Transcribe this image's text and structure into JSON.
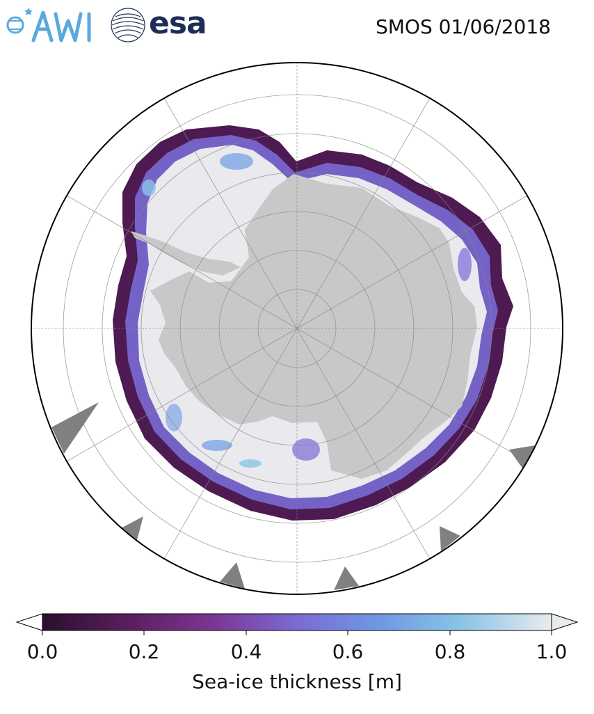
{
  "header": {
    "title": "SMOS 01/06/2018",
    "logos": [
      {
        "name": "AWI",
        "text": "AWI",
        "color": "#5aa9dd"
      },
      {
        "name": "esa",
        "text": "esa",
        "color": "#1f2e57"
      }
    ]
  },
  "map": {
    "projection": "south-polar-stereographic",
    "land_color": "#c8c8c8",
    "ocean_color": "#ffffff",
    "thick_ice_color": "#e9e9ee",
    "graticule": "on"
  },
  "colorbar": {
    "label": "Sea-ice thickness [m]",
    "min": 0.0,
    "max": 1.0,
    "ticks": [
      "0.0",
      "0.2",
      "0.4",
      "0.6",
      "0.8",
      "1.0"
    ],
    "colors": [
      "#2a0f2b",
      "#5a1f5e",
      "#7a3590",
      "#7b6bd4",
      "#6f9be3",
      "#8cc6e6",
      "#e8ecec"
    ],
    "extend": "both"
  }
}
